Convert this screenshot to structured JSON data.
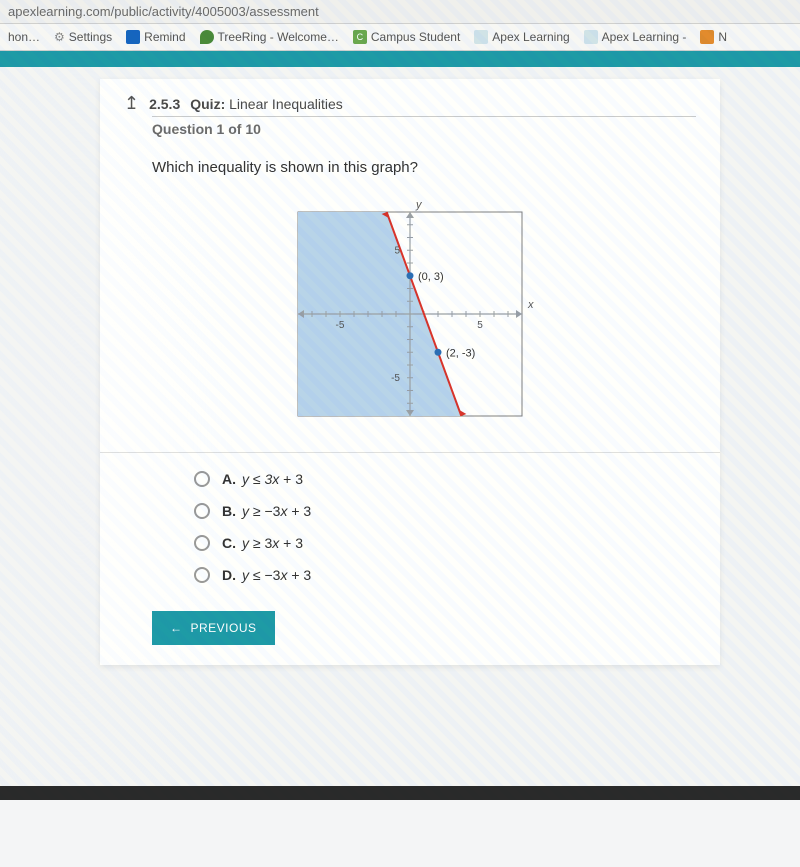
{
  "url": "apexlearning.com/public/activity/4005003/assessment",
  "bookmarks": {
    "b0": "hon…",
    "b1": "Settings",
    "b2": "Remind",
    "b3": "TreeRing - Welcome…",
    "b4": "Campus Student",
    "b5": "Apex Learning",
    "b6": "Apex Learning -",
    "b7": "N"
  },
  "quiz": {
    "number": "2.5.3",
    "label": "Quiz:",
    "title": "Linear Inequalities",
    "counter": "Question 1 of 10"
  },
  "prompt": "Which inequality is shown in this graph?",
  "graph": {
    "type": "inequality-plot",
    "xmin": -8,
    "xmax": 8,
    "ymin": -8,
    "ymax": 8,
    "tick_labels": {
      "x_neg": "-5",
      "x_pos": "5",
      "y_pos": "5",
      "y_neg": "-5"
    },
    "x_axis_label": "x",
    "y_axis_label": "y",
    "line": {
      "p1": [
        0,
        3
      ],
      "p2": [
        2,
        -3
      ],
      "color": "#d9342b",
      "solid": true,
      "width": 2
    },
    "shade_side": "left",
    "shade_color": "#b8d4ec",
    "points": [
      {
        "xy": [
          0,
          3
        ],
        "label": "(0, 3)",
        "color": "#2b6fb5"
      },
      {
        "xy": [
          2,
          -3
        ],
        "label": "(2, -3)",
        "color": "#2b6fb5"
      }
    ],
    "grid_color": "#9aa0a6",
    "bg_color": "#ffffff",
    "border_color": "#808080",
    "label_fontsize": 11,
    "tick_fontsize": 10
  },
  "choices": {
    "a": {
      "letter": "A.",
      "prefix": "y",
      "op": "≤",
      "rhs": "3x + 3"
    },
    "b": {
      "letter": "B.",
      "prefix": "y",
      "op": "≥",
      "rhs": "−3x + 3"
    },
    "c": {
      "letter": "C.",
      "prefix": "y",
      "op": "≥",
      "rhs": "3x + 3"
    },
    "d": {
      "letter": "D.",
      "prefix": "y",
      "op": "≤",
      "rhs": "−3x + 3"
    }
  },
  "prev_btn": "PREVIOUS",
  "colors": {
    "teal": "#1e9ba8",
    "page_bg": "#f4f5f6"
  }
}
